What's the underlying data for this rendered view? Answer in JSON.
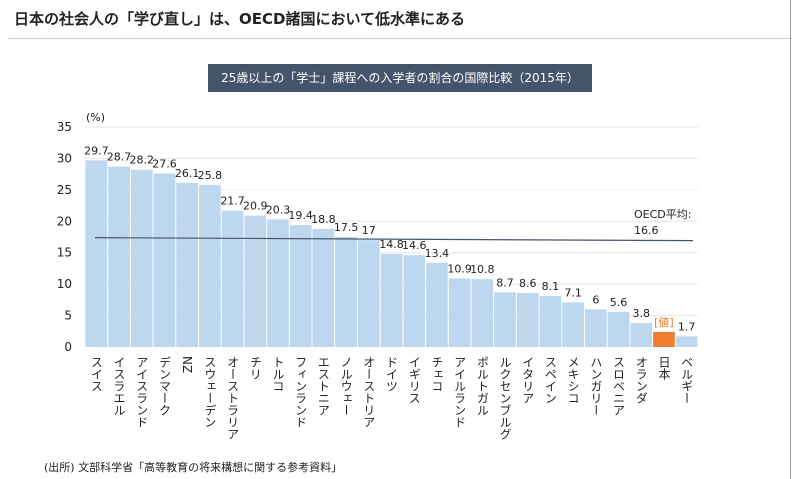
{
  "title": "日本の社会人の「学び直し」は、OECD諸国において低水準にある",
  "source": "(出所) 文部科学省「高等教育の将来構想に関する参考資料」",
  "chart_data": {
    "type": "bar",
    "title": "25歳以上の「学士」課程への入学者の割合の国際比較（2015年）",
    "ylabel": "(%)",
    "ylim": [
      0,
      35
    ],
    "yticks": [
      0,
      5,
      10,
      15,
      20,
      25,
      30,
      35
    ],
    "grid": true,
    "categories": [
      "スイス",
      "イスラエル",
      "アイスランド",
      "デンマーク",
      "NZ",
      "スウェーデン",
      "オーストラリア",
      "チリ",
      "トルコ",
      "フィンランド",
      "エストニア",
      "ノルウェー",
      "オーストリア",
      "ドイツ",
      "イギリス",
      "チェコ",
      "アイルランド",
      "ポルトガル",
      "ルクセンブルグ",
      "イタリア",
      "スペイン",
      "メキシコ",
      "ハンガリー",
      "スロベニア",
      "オランダ",
      "日本",
      "ベルギー"
    ],
    "values": [
      29.7,
      28.7,
      28.2,
      27.6,
      26.1,
      25.8,
      21.7,
      20.9,
      20.3,
      19.4,
      18.8,
      17.5,
      17,
      14.8,
      14.6,
      13.4,
      10.9,
      10.8,
      8.7,
      8.6,
      8.1,
      7.1,
      6,
      5.6,
      3.8,
      2.4,
      1.7
    ],
    "data_labels": [
      "29.7",
      "28.7",
      "28.2",
      "27.6",
      "26.1",
      "25.8",
      "21.7",
      "20.9",
      "20.3",
      "19.4",
      "18.8",
      "17.5",
      "17",
      "14.8",
      "14.6",
      "13.4",
      "10.9",
      "10.8",
      "8.7",
      "8.6",
      "8.1",
      "7.1",
      "6",
      "5.6",
      "3.8",
      "[値]",
      "1.7"
    ],
    "highlight_category": "日本",
    "colors": {
      "bar": "#bdd7ee",
      "highlight": "#ed7d31",
      "average_line": "#44546a",
      "grid": "#e6e6e6"
    },
    "average": {
      "label": "OECD平均:",
      "value": 16.6,
      "value_label": "16.6"
    }
  }
}
